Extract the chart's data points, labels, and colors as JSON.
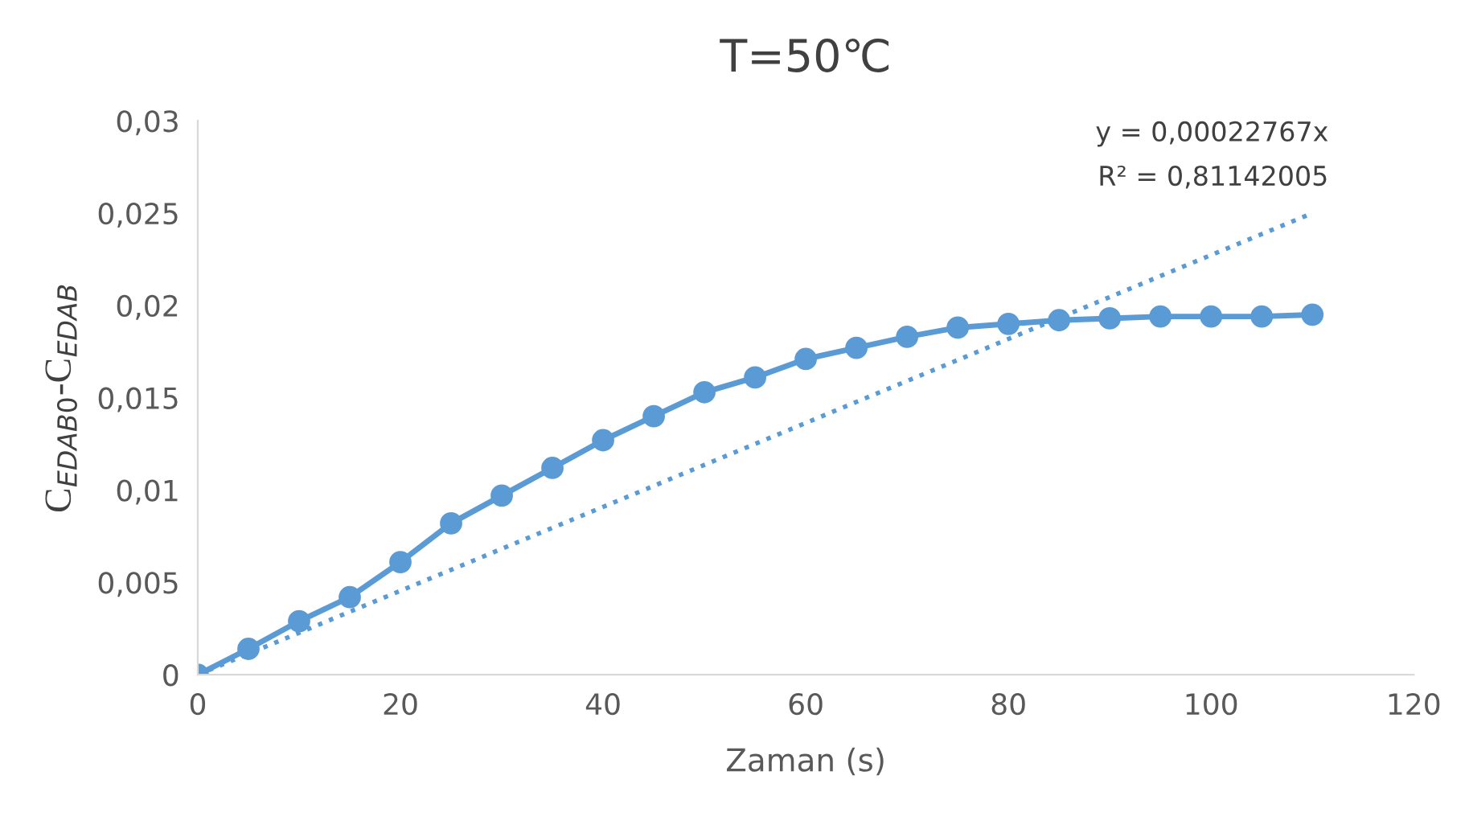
{
  "chart_data": {
    "type": "line",
    "title": "T=50℃",
    "xlabel": "Zaman (s)",
    "ylabel": "C$_{EDAB0}$-C$_{EDAB}$",
    "x": [
      0,
      5,
      10,
      15,
      20,
      25,
      30,
      35,
      40,
      45,
      50,
      55,
      60,
      65,
      70,
      75,
      80,
      85,
      90,
      95,
      100,
      105,
      110
    ],
    "series": [
      {
        "color": "#5b9bd5",
        "marker": "circle",
        "line_style": "solid",
        "values": [
          0,
          0.0014,
          0.0029,
          0.0042,
          0.0061,
          0.0082,
          0.0097,
          0.0112,
          0.0127,
          0.014,
          0.0153,
          0.0161,
          0.0171,
          0.0177,
          0.0183,
          0.0188,
          0.019,
          0.0192,
          0.0193,
          0.0194,
          0.0194,
          0.0194,
          0.0195
        ]
      },
      {
        "type": "line",
        "color": "#5b9bd5",
        "marker": "none",
        "line_style": "dotted",
        "x": [
          0,
          110
        ],
        "values": [
          0,
          0.025
        ]
      }
    ],
    "xlim": [
      0,
      120
    ],
    "xticks": [
      0,
      20,
      40,
      60,
      80,
      100,
      120
    ],
    "ylim": [
      0,
      0.03
    ],
    "yticks": [
      0,
      {
        "value": 0.005,
        "label": "0,005"
      },
      {
        "value": 0.01,
        "label": "0,01"
      },
      {
        "value": 0.015,
        "label": "0,015"
      },
      {
        "value": 0.02,
        "label": "0,02"
      },
      {
        "value": 0.025,
        "label": "0,025"
      },
      {
        "value": 0.03,
        "label": "0,03"
      }
    ],
    "grid": false,
    "legend": false,
    "annotations": [
      "y = 0,00022767x",
      "R² = 0,81142005"
    ]
  }
}
